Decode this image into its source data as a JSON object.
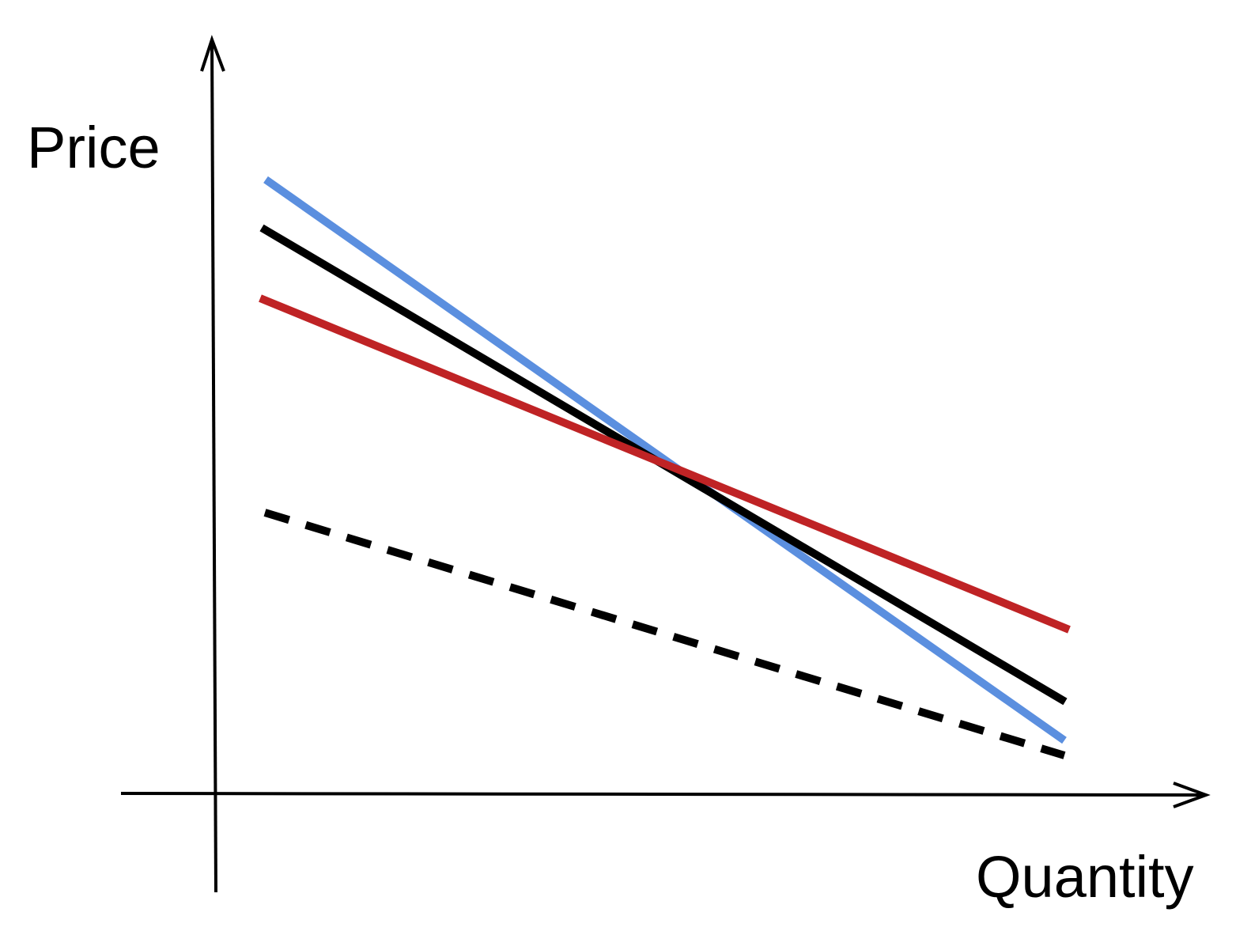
{
  "labels": {
    "y_axis": "Price",
    "x_axis": "Quantity"
  },
  "colors": {
    "axis": "#000000",
    "blue_line": "#5b8fdf",
    "black_line": "#000000",
    "red_line": "#bf2325",
    "dashed_line": "#000000"
  },
  "lines": [
    {
      "id": "blue-line",
      "style": "solid"
    },
    {
      "id": "black-line",
      "style": "solid"
    },
    {
      "id": "red-line",
      "style": "solid"
    },
    {
      "id": "dashed-line",
      "style": "dashed"
    }
  ]
}
